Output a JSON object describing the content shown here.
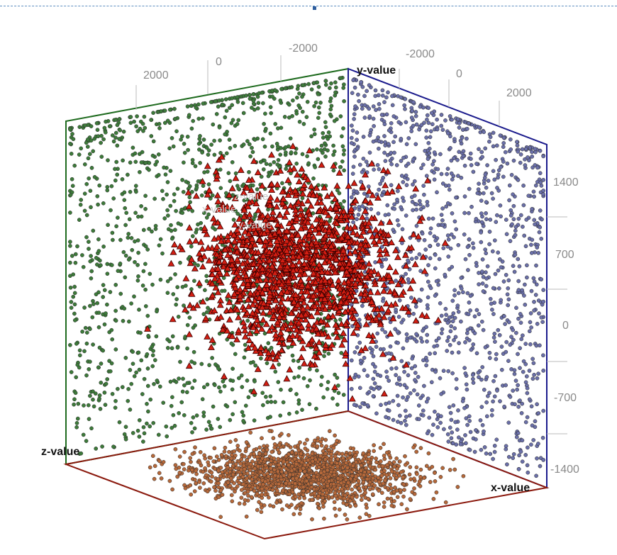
{
  "chart_data": {
    "type": "scatter",
    "subtype": "3d-scatter-with-wall-projections",
    "axes": {
      "x": {
        "label": "x-value"
      },
      "y": {
        "label": "y-value",
        "ticks": [
          "2000",
          "0",
          "-2000"
        ]
      },
      "y_right": {
        "ticks": [
          "-2000",
          "0",
          "2000"
        ]
      },
      "z": {
        "label": "z-value",
        "ticks": [
          "1400",
          "700",
          "0",
          "-700",
          "-1400"
        ],
        "range": [
          -1400,
          1400
        ]
      }
    },
    "series": [
      {
        "role": "points-3d",
        "marker": "triangle",
        "color": "#d41e12",
        "stroke": "#3a0000",
        "count": 1500
      },
      {
        "role": "projection-back-wall",
        "marker": "circle",
        "color": "#3d7a3a",
        "count": 1300
      },
      {
        "role": "projection-right-wall",
        "marker": "circle",
        "color": "#6a6fa8",
        "count": 1300
      },
      {
        "role": "projection-floor",
        "marker": "circle",
        "color": "#b5683a",
        "count": 1700
      }
    ],
    "ghost_labels": [
      "z-value",
      "x-value",
      "y-value"
    ],
    "wall_colors": {
      "back": "#1f6b1f",
      "right": "#1a1a8c",
      "floor": "#8b1a0e"
    },
    "grid": false,
    "legend": "none"
  }
}
